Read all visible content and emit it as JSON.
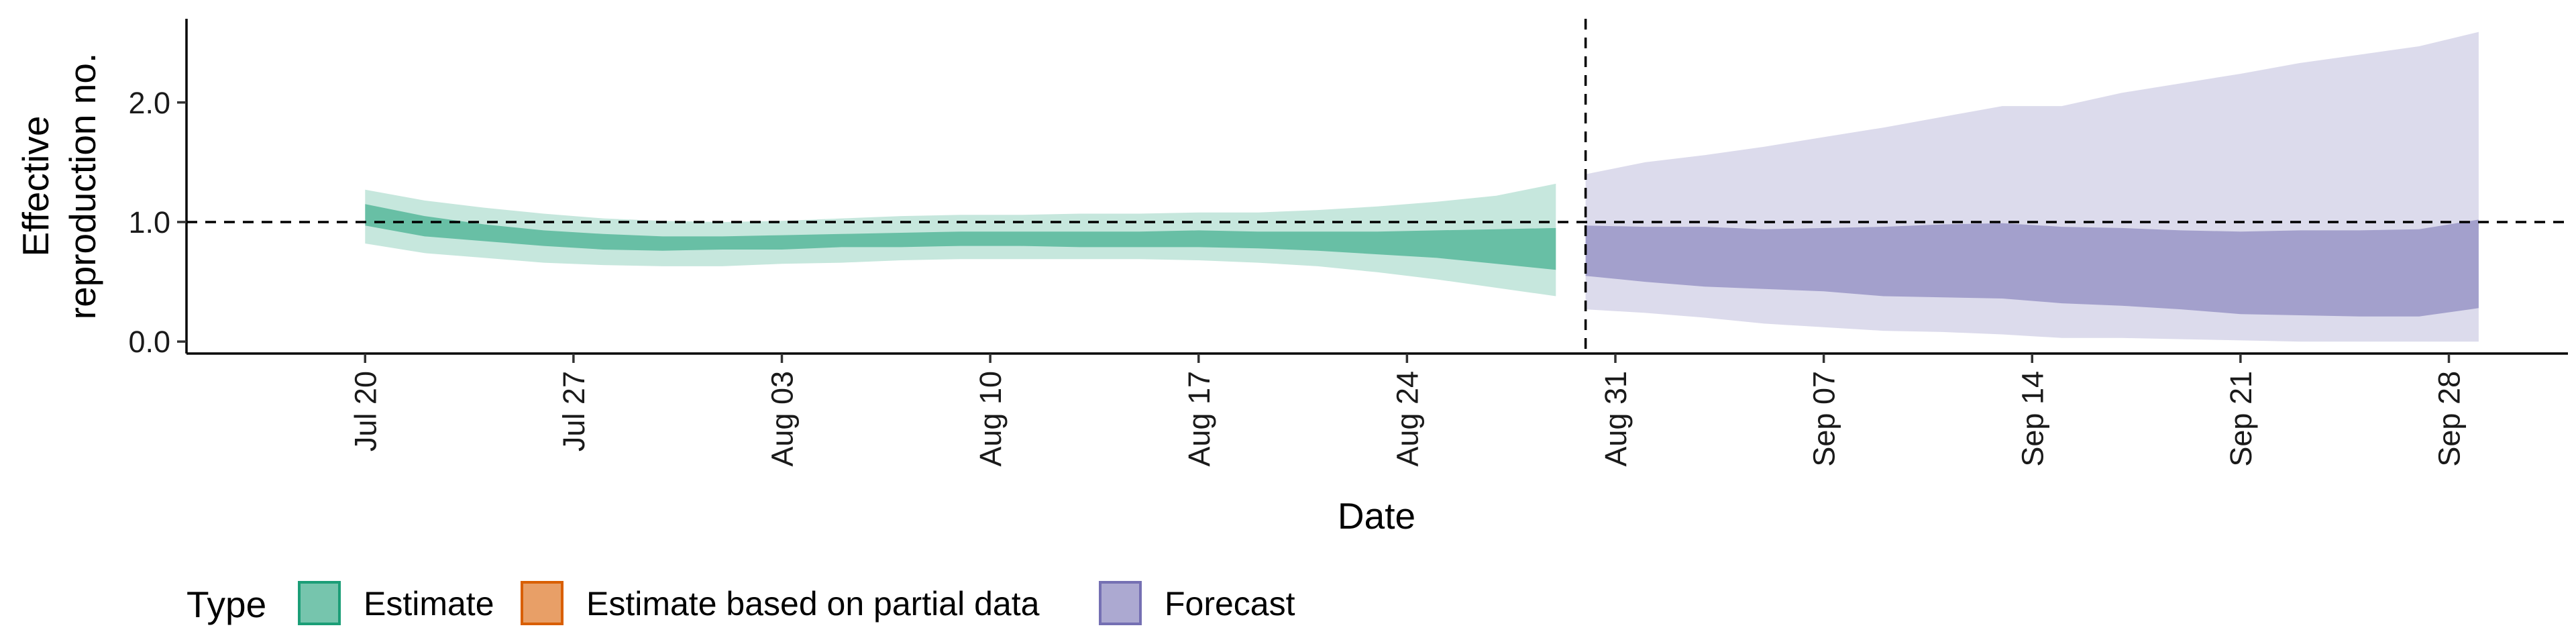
{
  "chart_data": {
    "type": "area",
    "xlabel": "Date",
    "ylabel_lines": [
      "Effective",
      "reproduction no."
    ],
    "x_ticks": [
      "Jul 20",
      "Jul 27",
      "Aug 03",
      "Aug 10",
      "Aug 17",
      "Aug 24",
      "Aug 31",
      "Sep 07",
      "Sep 14",
      "Sep 21",
      "Sep 28"
    ],
    "y_ticks": [
      "0.0",
      "1.0",
      "2.0"
    ],
    "ylim": [
      -0.1,
      2.7
    ],
    "xlim": [
      "2020-07-14",
      "2020-10-02"
    ],
    "reference_line_y": 1.0,
    "forecast_start_line": "2020-08-30",
    "grid": false,
    "legend": {
      "title": "Type",
      "position": "bottom",
      "entries": [
        {
          "label": "Estimate",
          "color": "#1b9e77"
        },
        {
          "label": "Estimate based on partial data",
          "color": "#d95f02"
        },
        {
          "label": "Forecast",
          "color": "#7570b3"
        }
      ]
    },
    "series": [
      {
        "type_key": "estimate",
        "color": "#1b9e77",
        "x": [
          "2020-07-20",
          "2020-07-22",
          "2020-07-24",
          "2020-07-26",
          "2020-07-28",
          "2020-07-30",
          "2020-08-01",
          "2020-08-03",
          "2020-08-05",
          "2020-08-07",
          "2020-08-09",
          "2020-08-11",
          "2020-08-13",
          "2020-08-15",
          "2020-08-17",
          "2020-08-19",
          "2020-08-21",
          "2020-08-23",
          "2020-08-25",
          "2020-08-27",
          "2020-08-29"
        ],
        "lower_90": [
          0.82,
          0.74,
          0.7,
          0.66,
          0.64,
          0.63,
          0.63,
          0.65,
          0.66,
          0.68,
          0.69,
          0.69,
          0.69,
          0.69,
          0.68,
          0.66,
          0.63,
          0.58,
          0.52,
          0.45,
          0.38
        ],
        "lower_50": [
          0.97,
          0.88,
          0.84,
          0.8,
          0.77,
          0.76,
          0.77,
          0.77,
          0.79,
          0.79,
          0.8,
          0.8,
          0.79,
          0.79,
          0.79,
          0.78,
          0.76,
          0.73,
          0.7,
          0.65,
          0.6
        ],
        "upper_50": [
          1.15,
          1.05,
          0.98,
          0.93,
          0.9,
          0.88,
          0.88,
          0.89,
          0.9,
          0.91,
          0.92,
          0.92,
          0.92,
          0.92,
          0.93,
          0.92,
          0.92,
          0.92,
          0.93,
          0.94,
          0.95
        ],
        "upper_90": [
          1.27,
          1.18,
          1.12,
          1.07,
          1.03,
          1.01,
          1.0,
          1.01,
          1.03,
          1.05,
          1.06,
          1.06,
          1.07,
          1.07,
          1.08,
          1.08,
          1.1,
          1.13,
          1.17,
          1.22,
          1.32
        ]
      },
      {
        "type_key": "forecast",
        "color": "#7570b3",
        "x": [
          "2020-08-30",
          "2020-09-01",
          "2020-09-03",
          "2020-09-05",
          "2020-09-07",
          "2020-09-09",
          "2020-09-11",
          "2020-09-13",
          "2020-09-15",
          "2020-09-17",
          "2020-09-19",
          "2020-09-21",
          "2020-09-23",
          "2020-09-25",
          "2020-09-27",
          "2020-09-29"
        ],
        "lower_90": [
          0.27,
          0.24,
          0.2,
          0.15,
          0.12,
          0.09,
          0.08,
          0.06,
          0.03,
          0.03,
          0.02,
          0.01,
          0.0,
          0.0,
          0.0,
          0.0
        ],
        "lower_50": [
          0.55,
          0.5,
          0.46,
          0.44,
          0.42,
          0.38,
          0.37,
          0.36,
          0.32,
          0.3,
          0.27,
          0.23,
          0.22,
          0.21,
          0.21,
          0.28
        ],
        "upper_50": [
          0.97,
          0.96,
          0.96,
          0.94,
          0.95,
          0.96,
          0.98,
          0.99,
          0.96,
          0.95,
          0.93,
          0.92,
          0.93,
          0.93,
          0.94,
          1.02
        ],
        "upper_90": [
          1.4,
          1.5,
          1.56,
          1.63,
          1.71,
          1.79,
          1.88,
          1.97,
          1.97,
          2.08,
          2.16,
          2.24,
          2.33,
          2.4,
          2.47,
          2.59
        ]
      }
    ]
  }
}
